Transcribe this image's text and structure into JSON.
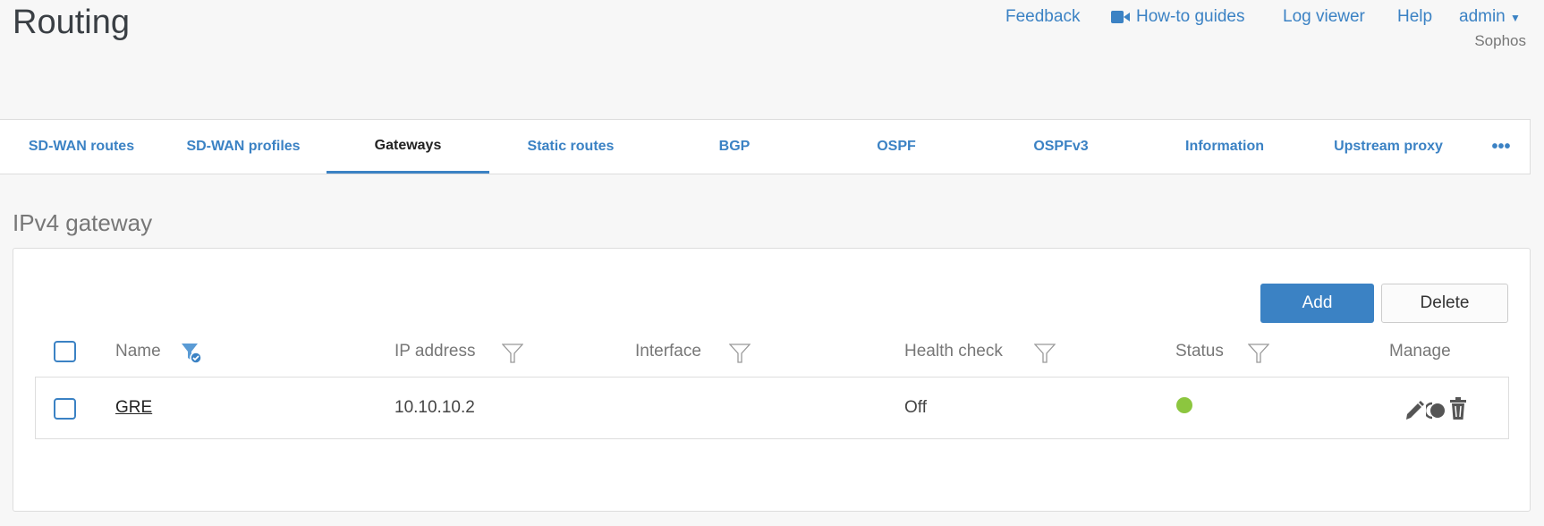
{
  "header": {
    "title": "Routing",
    "links": {
      "feedback": "Feedback",
      "howto": "How-to guides",
      "logviewer": "Log viewer",
      "help": "Help",
      "admin": "admin"
    },
    "org": "Sophos"
  },
  "tabs": [
    "SD-WAN routes",
    "SD-WAN profiles",
    "Gateways",
    "Static routes",
    "BGP",
    "OSPF",
    "OSPFv3",
    "Information",
    "Upstream proxy"
  ],
  "active_tab": "Gateways",
  "section": {
    "title": "IPv4 gateway",
    "add": "Add",
    "delete": "Delete"
  },
  "table": {
    "columns": [
      "Name",
      "IP address",
      "Interface",
      "Health check",
      "Status",
      "Manage"
    ],
    "rows": [
      {
        "name": "GRE",
        "ip": "10.10.10.2",
        "interface": "",
        "health_check": "Off",
        "status": "active"
      }
    ]
  },
  "colors": {
    "accent": "#3b82c4",
    "status_ok": "#8cc63f"
  }
}
